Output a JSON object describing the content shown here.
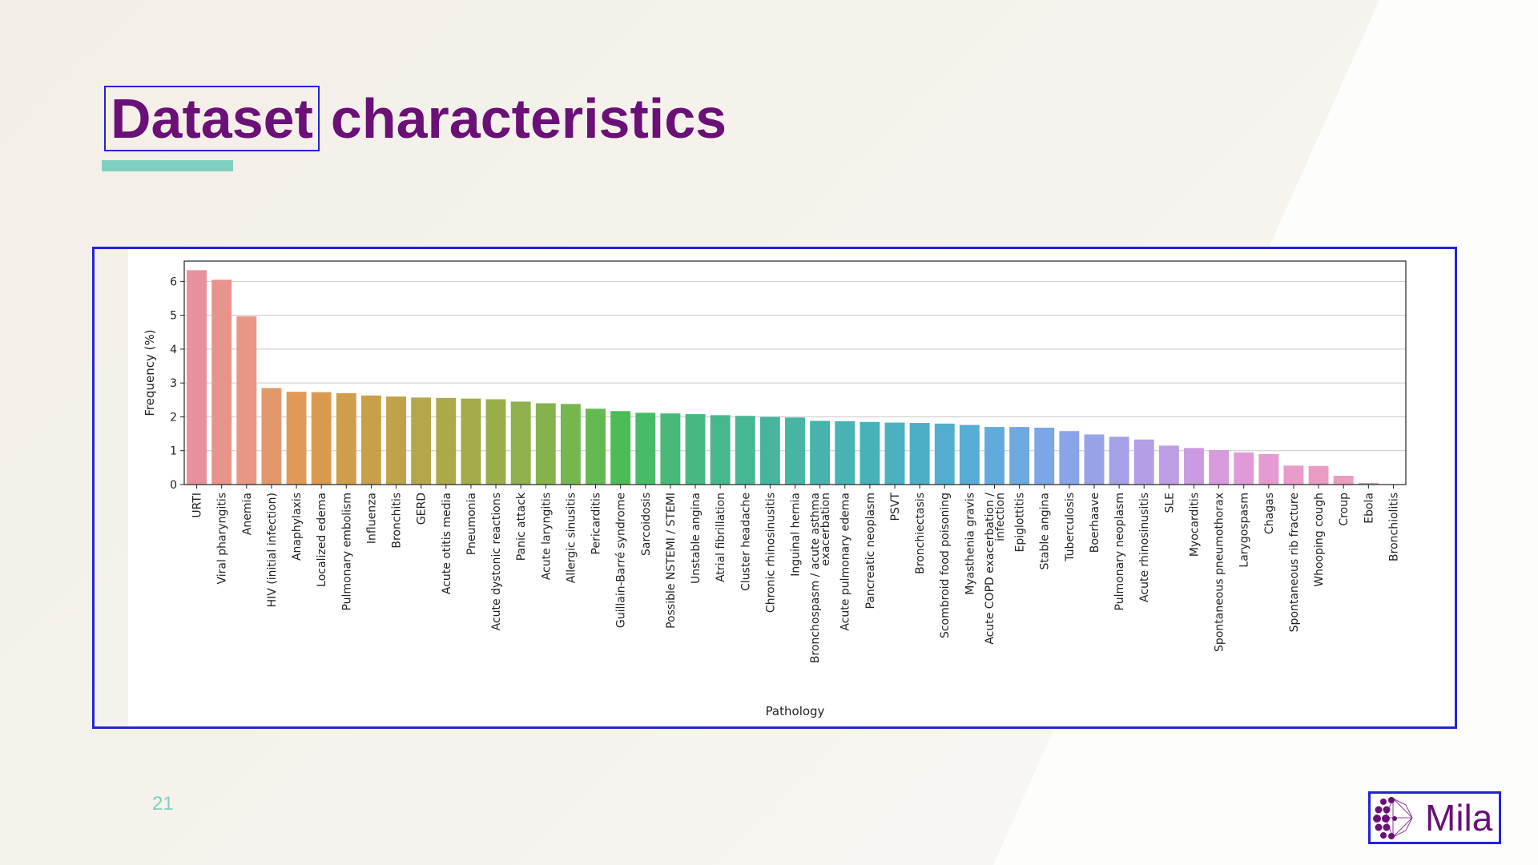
{
  "slide": {
    "title_word_1": "Dataset",
    "title_word_2": "characteristics",
    "page_number": "21",
    "logo_text": "Mila",
    "colors": {
      "title": "#6a1077",
      "accent": "#7fd0c0",
      "highlight_border": "#2323d6"
    }
  },
  "chart_data": {
    "type": "bar",
    "xlabel": "Pathology",
    "ylabel": "Frequency (%)",
    "ylim": [
      0,
      6.6
    ],
    "yticks": [
      0,
      1,
      2,
      3,
      4,
      5,
      6
    ],
    "grid": true,
    "categories": [
      [
        "URTI"
      ],
      [
        "Viral pharyngitis"
      ],
      [
        "Anemia"
      ],
      [
        "HIV (initial infection)"
      ],
      [
        "Anaphylaxis"
      ],
      [
        "Localized edema"
      ],
      [
        "Pulmonary embolism"
      ],
      [
        "Influenza"
      ],
      [
        "Bronchitis"
      ],
      [
        "GERD"
      ],
      [
        "Acute otitis media"
      ],
      [
        "Pneumonia"
      ],
      [
        "Acute dystonic reactions"
      ],
      [
        "Panic attack"
      ],
      [
        "Acute laryngitis"
      ],
      [
        "Allergic sinusitis"
      ],
      [
        "Pericarditis"
      ],
      [
        "Guillain-Barré syndrome"
      ],
      [
        "Sarcoidosis"
      ],
      [
        "Possible NSTEMI / STEMI"
      ],
      [
        "Unstable angina"
      ],
      [
        "Atrial fibrillation"
      ],
      [
        "Cluster headache"
      ],
      [
        "Chronic rhinosinusitis"
      ],
      [
        "Inguinal hernia"
      ],
      [
        "Bronchospasm / acute asthma",
        "exacerbation"
      ],
      [
        "Acute pulmonary edema"
      ],
      [
        "Pancreatic neoplasm"
      ],
      [
        "PSVT"
      ],
      [
        "Bronchiectasis"
      ],
      [
        "Scombroid food poisoning"
      ],
      [
        "Myasthenia gravis"
      ],
      [
        "Acute COPD exacerbation /",
        "infection"
      ],
      [
        "Epiglottitis"
      ],
      [
        "Stable angina"
      ],
      [
        "Tuberculosis"
      ],
      [
        "Boerhaave"
      ],
      [
        "Pulmonary neoplasm"
      ],
      [
        "Acute rhinosinusitis"
      ],
      [
        "SLE"
      ],
      [
        "Myocarditis"
      ],
      [
        "Spontaneous pneumothorax"
      ],
      [
        "Larygospasm"
      ],
      [
        "Chagas"
      ],
      [
        "Spontaneous rib fracture"
      ],
      [
        "Whooping cough"
      ],
      [
        "Croup"
      ],
      [
        "Ebola"
      ],
      [
        "Bronchiolitis"
      ]
    ],
    "values": [
      6.33,
      6.05,
      4.97,
      2.85,
      2.74,
      2.73,
      2.7,
      2.63,
      2.6,
      2.57,
      2.56,
      2.54,
      2.52,
      2.45,
      2.4,
      2.38,
      2.24,
      2.17,
      2.12,
      2.1,
      2.08,
      2.05,
      2.03,
      2.0,
      1.98,
      1.88,
      1.87,
      1.85,
      1.83,
      1.82,
      1.8,
      1.76,
      1.7,
      1.7,
      1.68,
      1.58,
      1.48,
      1.41,
      1.33,
      1.15,
      1.08,
      1.02,
      0.95,
      0.9,
      0.56,
      0.55,
      0.26,
      0.05,
      0.01
    ],
    "colors": [
      "#e6919c",
      "#e8948c",
      "#e89882",
      "#e09a6a",
      "#df9a58",
      "#d99a4f",
      "#d09d4a",
      "#c8a04a",
      "#bea34a",
      "#b5a64a",
      "#aca94a",
      "#a3ab4a",
      "#99ae4b",
      "#8fb04c",
      "#84b34d",
      "#76b64f",
      "#64b951",
      "#4ebc54",
      "#49ba68",
      "#48b976",
      "#47b882",
      "#47b78c",
      "#47b695",
      "#47b59d",
      "#47b4a4",
      "#47b3ab",
      "#47b3b2",
      "#48b2b9",
      "#4ab1bf",
      "#4dafc5",
      "#52aecc",
      "#59acd3",
      "#62aadb",
      "#6ea9e2",
      "#7ca7e6",
      "#8aa5e7",
      "#98a3e7",
      "#a6a1e7",
      "#b39fe6",
      "#bf9de4",
      "#cb9be1",
      "#d69add",
      "#e09ad8",
      "#e69ad2",
      "#e99bcb",
      "#ea9cc3",
      "#ea9dbc",
      "#e99db4",
      "#e89dad"
    ]
  }
}
